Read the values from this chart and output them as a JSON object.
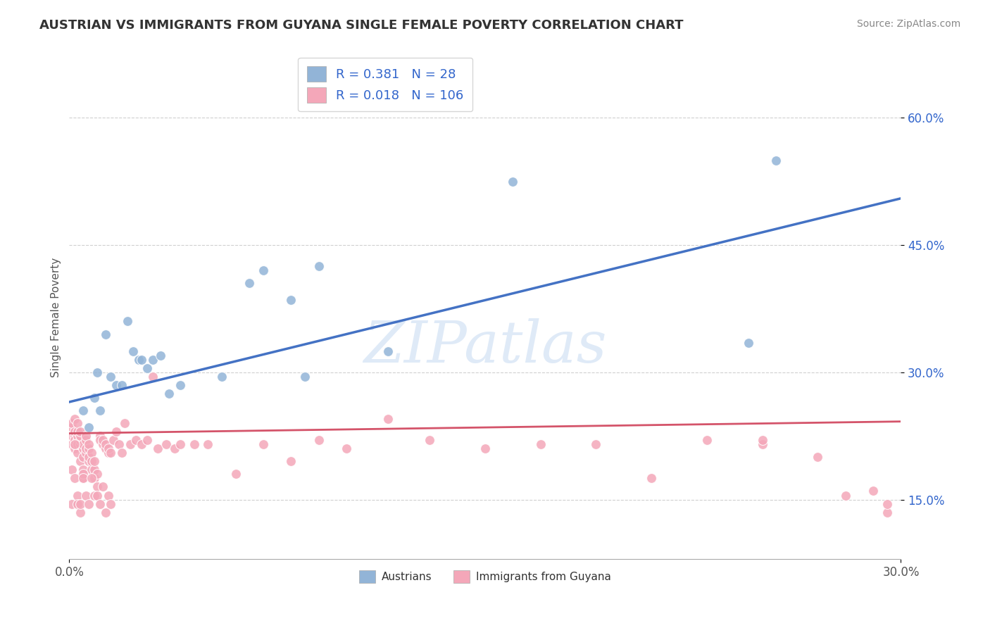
{
  "title": "AUSTRIAN VS IMMIGRANTS FROM GUYANA SINGLE FEMALE POVERTY CORRELATION CHART",
  "source": "Source: ZipAtlas.com",
  "ylabel": "Single Female Poverty",
  "xlim": [
    0.0,
    0.3
  ],
  "ylim": [
    0.08,
    0.65
  ],
  "xticks": [
    0.0,
    0.3
  ],
  "yticks": [
    0.15,
    0.3,
    0.45,
    0.6
  ],
  "ytick_labels": [
    "15.0%",
    "30.0%",
    "45.0%",
    "60.0%"
  ],
  "xtick_labels": [
    "0.0%",
    "30.0%"
  ],
  "legend_label1": "Austrians",
  "legend_label2": "Immigrants from Guyana",
  "R1": "0.381",
  "N1": "28",
  "R2": "0.018",
  "N2": "106",
  "blue_color": "#92b4d7",
  "pink_color": "#f4a7b9",
  "blue_line_color": "#4472c4",
  "pink_line_color": "#d4546a",
  "watermark": "ZIPatlas",
  "blue_line_x0": 0.0,
  "blue_line_y0": 0.265,
  "blue_line_x1": 0.3,
  "blue_line_y1": 0.505,
  "pink_line_x0": 0.0,
  "pink_line_y0": 0.228,
  "pink_line_x1": 0.3,
  "pink_line_y1": 0.242,
  "blue_scatter_x": [
    0.005,
    0.007,
    0.009,
    0.01,
    0.011,
    0.013,
    0.015,
    0.017,
    0.019,
    0.021,
    0.023,
    0.025,
    0.026,
    0.028,
    0.03,
    0.033,
    0.036,
    0.04,
    0.055,
    0.065,
    0.08,
    0.085,
    0.09,
    0.115,
    0.16,
    0.245,
    0.255,
    0.07
  ],
  "blue_scatter_y": [
    0.255,
    0.235,
    0.27,
    0.3,
    0.255,
    0.345,
    0.295,
    0.285,
    0.285,
    0.36,
    0.325,
    0.315,
    0.315,
    0.305,
    0.315,
    0.32,
    0.275,
    0.285,
    0.295,
    0.405,
    0.385,
    0.295,
    0.425,
    0.325,
    0.525,
    0.335,
    0.55,
    0.42
  ],
  "pink_scatter_x": [
    0.001,
    0.001,
    0.001,
    0.001,
    0.002,
    0.002,
    0.002,
    0.002,
    0.002,
    0.002,
    0.003,
    0.003,
    0.003,
    0.003,
    0.003,
    0.003,
    0.004,
    0.004,
    0.004,
    0.004,
    0.004,
    0.005,
    0.005,
    0.005,
    0.005,
    0.005,
    0.006,
    0.006,
    0.006,
    0.006,
    0.007,
    0.007,
    0.007,
    0.007,
    0.008,
    0.008,
    0.008,
    0.009,
    0.009,
    0.009,
    0.01,
    0.01,
    0.011,
    0.011,
    0.012,
    0.012,
    0.013,
    0.013,
    0.014,
    0.014,
    0.015,
    0.016,
    0.017,
    0.018,
    0.019,
    0.02,
    0.022,
    0.024,
    0.026,
    0.028,
    0.03,
    0.032,
    0.035,
    0.038,
    0.04,
    0.045,
    0.05,
    0.06,
    0.07,
    0.08,
    0.09,
    0.1,
    0.115,
    0.13,
    0.15,
    0.17,
    0.19,
    0.21,
    0.23,
    0.25,
    0.27,
    0.29,
    0.25,
    0.28,
    0.295,
    0.295,
    0.001,
    0.001,
    0.002,
    0.002,
    0.003,
    0.003,
    0.004,
    0.004,
    0.005,
    0.005,
    0.006,
    0.007,
    0.008,
    0.009,
    0.01,
    0.011,
    0.012,
    0.013,
    0.014,
    0.015
  ],
  "pink_scatter_y": [
    0.225,
    0.235,
    0.24,
    0.215,
    0.21,
    0.225,
    0.23,
    0.245,
    0.215,
    0.22,
    0.205,
    0.22,
    0.225,
    0.23,
    0.215,
    0.24,
    0.215,
    0.22,
    0.225,
    0.195,
    0.23,
    0.175,
    0.2,
    0.21,
    0.215,
    0.185,
    0.205,
    0.21,
    0.22,
    0.225,
    0.195,
    0.2,
    0.21,
    0.215,
    0.185,
    0.195,
    0.205,
    0.175,
    0.185,
    0.195,
    0.165,
    0.18,
    0.225,
    0.22,
    0.215,
    0.22,
    0.21,
    0.215,
    0.205,
    0.21,
    0.205,
    0.22,
    0.23,
    0.215,
    0.205,
    0.24,
    0.215,
    0.22,
    0.215,
    0.22,
    0.295,
    0.21,
    0.215,
    0.21,
    0.215,
    0.215,
    0.215,
    0.18,
    0.215,
    0.195,
    0.22,
    0.21,
    0.245,
    0.22,
    0.21,
    0.215,
    0.215,
    0.175,
    0.22,
    0.215,
    0.2,
    0.16,
    0.22,
    0.155,
    0.135,
    0.145,
    0.185,
    0.145,
    0.175,
    0.215,
    0.155,
    0.145,
    0.135,
    0.145,
    0.18,
    0.175,
    0.155,
    0.145,
    0.175,
    0.155,
    0.155,
    0.145,
    0.165,
    0.135,
    0.155,
    0.145
  ]
}
